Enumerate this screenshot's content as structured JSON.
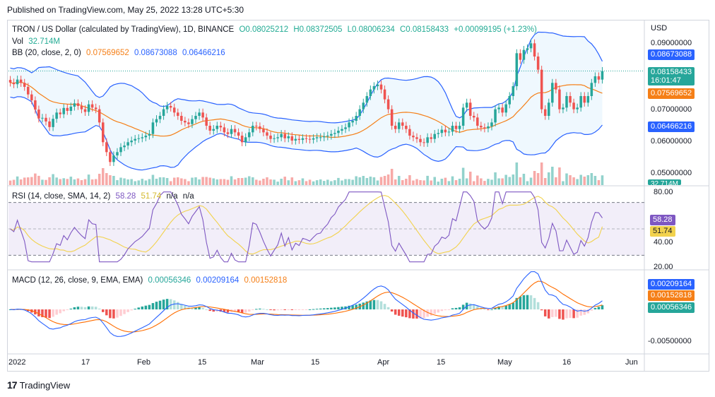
{
  "header": {
    "published": "Published on TradingView.com, May 25, 2022 13:28 UTC+5:30",
    "currency": "USD"
  },
  "legend_main": {
    "symbol": "TRON / US Dollar (calculated by TradingView), 1D, BINANCE",
    "o": "O0.08025212",
    "h": "H0.08372505",
    "l": "L0.08006234",
    "c": "C0.08158433",
    "chg": "+0.00099195 (+1.23%)",
    "vol_label": "Vol",
    "vol_value": "32.714M",
    "bb_label": "BB (20, close, 2, 0)",
    "bb_basis": "0.07569652",
    "bb_upper": "0.08673088",
    "bb_lower": "0.06466216"
  },
  "legend_rsi": {
    "label": "RSI (14, close, SMA, 14, 2)",
    "rsi": "58.28",
    "sma": "51.74",
    "na1": "n/a",
    "na2": "n/a"
  },
  "legend_macd": {
    "label": "MACD (12, 26, close, 9, EMA, EMA)",
    "hist": "0.00056346",
    "macd": "0.00209164",
    "signal": "0.00152818"
  },
  "price_axis": [
    "0.09000000",
    "0.07000000",
    "0.06000000",
    "0.05000000"
  ],
  "price_tags": {
    "upper": "0.08673088",
    "close": "0.08158433",
    "countdown": "16:01:47",
    "basis": "0.07569652",
    "lower": "0.06466216",
    "vol": "32.714M"
  },
  "rsi_axis": [
    "80.00",
    "40.00",
    "20.00"
  ],
  "rsi_tags": {
    "rsi": "58.28",
    "sma": "51.74"
  },
  "macd_axis": [
    "-0.00500000"
  ],
  "macd_tags": {
    "macd": "0.00209164",
    "signal": "0.00152818",
    "hist": "0.00056346"
  },
  "time_axis": [
    "2022",
    "17",
    "Feb",
    "15",
    "Mar",
    "15",
    "Apr",
    "15",
    "May",
    "16",
    "Jun"
  ],
  "brand": "TradingView",
  "colors": {
    "up": "#26a69a",
    "down": "#ef5350",
    "bb": "#2962ff",
    "basis": "#f57f17",
    "rsi": "#7e57c2",
    "rsi_sma": "#f2d24d"
  },
  "chart_data": {
    "type": "candlestick",
    "title": "TRON / US Dollar (calculated by TradingView), 1D, BINANCE",
    "y_range": [
      0.047,
      0.095
    ],
    "closes": [
      0.0781,
      0.0776,
      0.079,
      0.078,
      0.0768,
      0.0745,
      0.0727,
      0.0699,
      0.0672,
      0.0674,
      0.0663,
      0.0646,
      0.0671,
      0.069,
      0.0685,
      0.0704,
      0.0695,
      0.0708,
      0.0718,
      0.071,
      0.07,
      0.0692,
      0.0715,
      0.0705,
      0.07,
      0.066,
      0.06,
      0.057,
      0.054,
      0.056,
      0.057,
      0.0585,
      0.059,
      0.06,
      0.0605,
      0.061,
      0.0612,
      0.0615,
      0.062,
      0.0625,
      0.066,
      0.067,
      0.068,
      0.07,
      0.071,
      0.0705,
      0.069,
      0.068,
      0.0665,
      0.066,
      0.0655,
      0.067,
      0.068,
      0.069,
      0.0675,
      0.065,
      0.0635,
      0.064,
      0.065,
      0.0645,
      0.063,
      0.0625,
      0.064,
      0.063,
      0.062,
      0.06,
      0.0615,
      0.063,
      0.065,
      0.0648,
      0.064,
      0.063,
      0.062,
      0.061,
      0.0612,
      0.0615,
      0.0625,
      0.0612,
      0.0618,
      0.0605,
      0.061,
      0.0607,
      0.0612,
      0.061,
      0.0608,
      0.0612,
      0.0615,
      0.0615,
      0.0618,
      0.062,
      0.0625,
      0.0628,
      0.0635,
      0.064,
      0.0645,
      0.066,
      0.0665,
      0.068,
      0.07,
      0.072,
      0.074,
      0.076,
      0.077,
      0.0775,
      0.076,
      0.073,
      0.07,
      0.065,
      0.064,
      0.066,
      0.065,
      0.064,
      0.062,
      0.0615,
      0.061,
      0.06,
      0.0598,
      0.0615,
      0.061,
      0.0625,
      0.0628,
      0.0638,
      0.063,
      0.0632,
      0.065,
      0.064,
      0.065,
      0.0705,
      0.072,
      0.068,
      0.0675,
      0.065,
      0.0645,
      0.0642,
      0.0648,
      0.066,
      0.07,
      0.0705,
      0.069,
      0.0715,
      0.074,
      0.077,
      0.087,
      0.085,
      0.088,
      0.0885,
      0.09,
      0.086,
      0.082,
      0.07,
      0.068,
      0.072,
      0.078,
      0.076,
      0.07,
      0.0705,
      0.074,
      0.072,
      0.07,
      0.0705,
      0.074,
      0.072,
      0.074,
      0.078,
      0.08,
      0.079,
      0.0816
    ],
    "volume_last": "32.714M",
    "bollinger": {
      "basis": 0.07569652,
      "upper": 0.08673088,
      "lower": 0.06466216
    },
    "rsi": {
      "value": 58.28,
      "sma": 51.74,
      "y_range": [
        20,
        80
      ]
    },
    "macd": {
      "macd": 0.00209164,
      "signal": 0.00152818,
      "histogram": 0.00056346
    }
  }
}
